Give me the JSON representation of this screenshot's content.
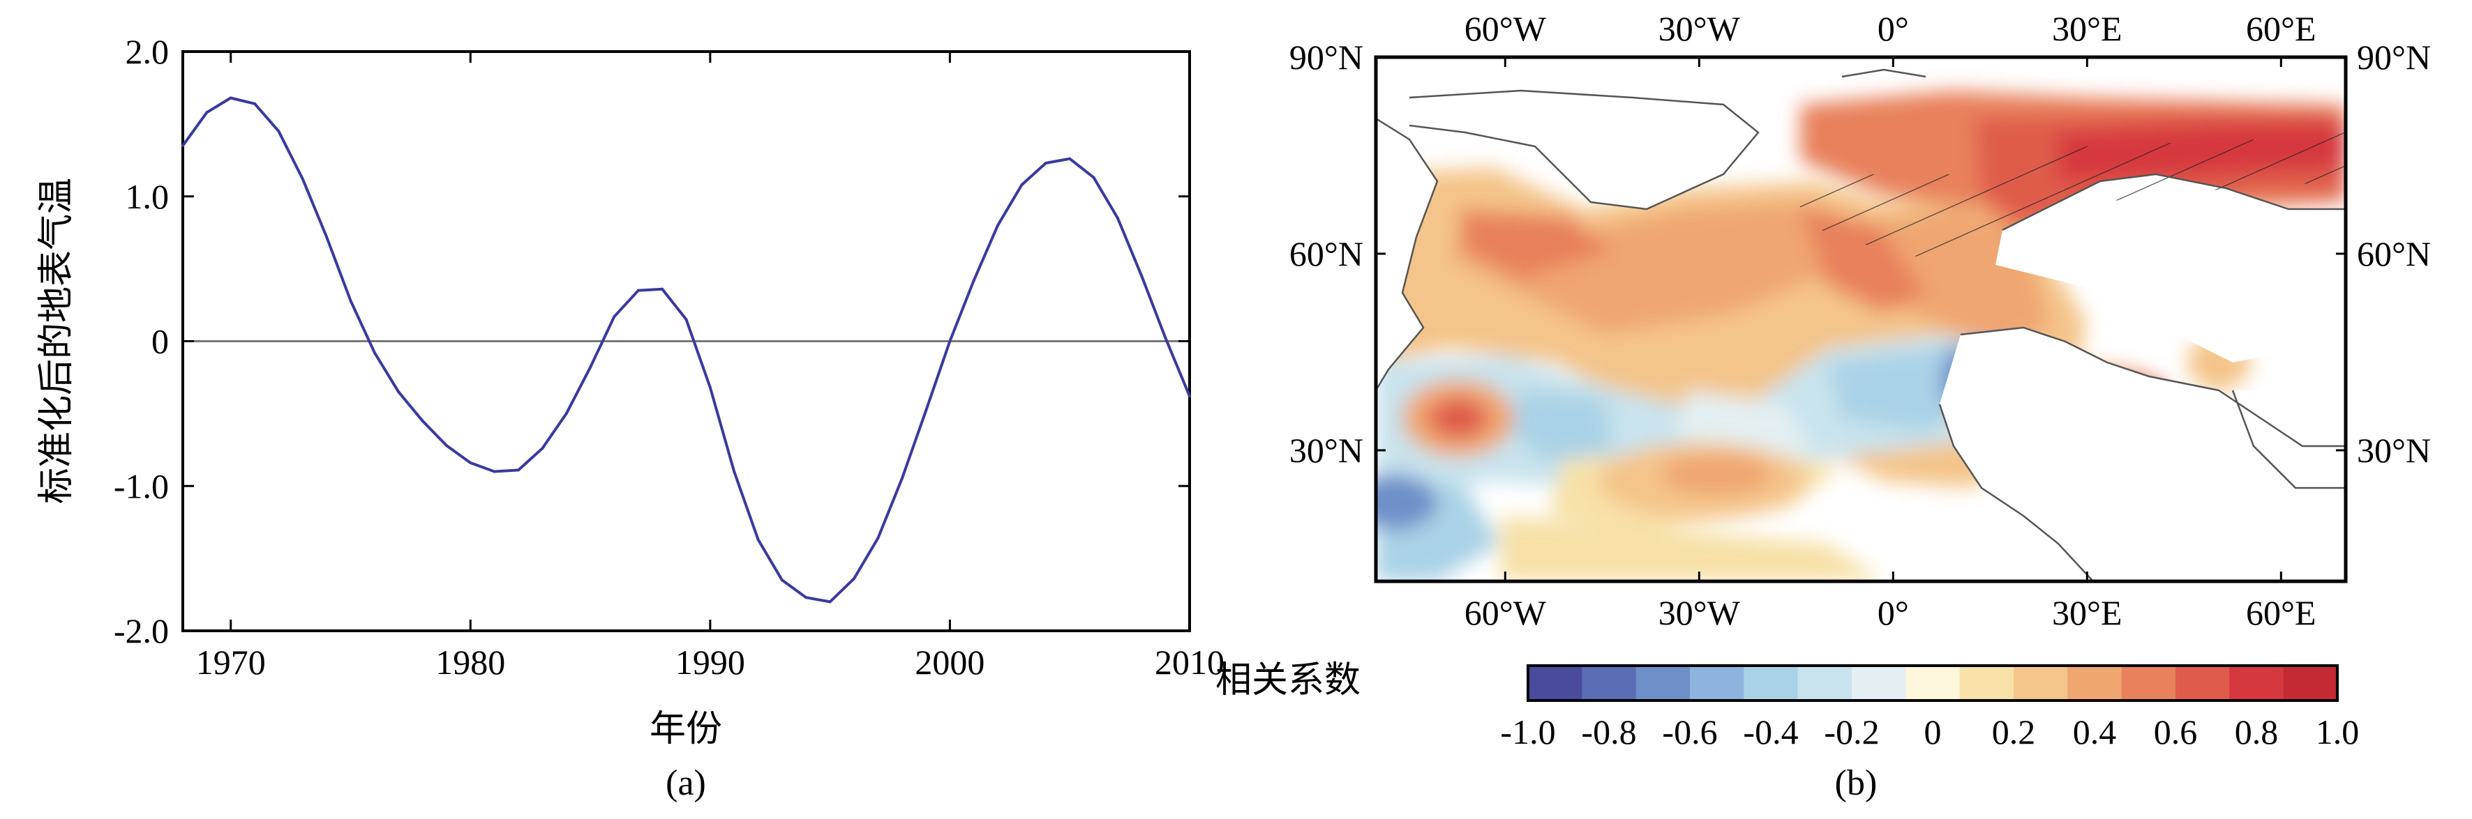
{
  "chart_data": [
    {
      "type": "line",
      "panel_label": "(a)",
      "xlabel": "年份",
      "ylabel": "标准化后的地表气温",
      "xlim": [
        1968,
        2010
      ],
      "ylim": [
        -2.0,
        2.0
      ],
      "xticks": [
        1970,
        1980,
        1990,
        2000,
        2010
      ],
      "xtick_labels": [
        "1970",
        "1980",
        "1990",
        "2000",
        "2010"
      ],
      "yticks": [
        2.0,
        1.0,
        0,
        -1.0,
        -2.0
      ],
      "ytick_labels": [
        "2.0",
        "1.0",
        "0",
        "-1.0",
        "-2.0"
      ],
      "zero_line": true,
      "grid": false,
      "series_color": "#3a3a9e",
      "x": [
        1968,
        1969,
        1970,
        1971,
        1972,
        1973,
        1974,
        1975,
        1976,
        1977,
        1978,
        1979,
        1980,
        1981,
        1982,
        1983,
        1984,
        1985,
        1986,
        1987,
        1988,
        1989,
        1990,
        1991,
        1992,
        1993,
        1994,
        1995,
        1996,
        1997,
        1998,
        1999,
        2000,
        2001,
        2002,
        2003,
        2004,
        2005,
        2006,
        2007,
        2008,
        2009,
        2010
      ],
      "values": [
        1.35,
        1.58,
        1.68,
        1.64,
        1.45,
        1.12,
        0.72,
        0.28,
        -0.08,
        -0.35,
        -0.55,
        -0.72,
        -0.84,
        -0.9,
        -0.89,
        -0.74,
        -0.5,
        -0.18,
        0.17,
        0.35,
        0.36,
        0.15,
        -0.32,
        -0.9,
        -1.37,
        -1.65,
        -1.77,
        -1.8,
        -1.64,
        -1.36,
        -0.95,
        -0.48,
        0.0,
        0.42,
        0.8,
        1.08,
        1.23,
        1.26,
        1.13,
        0.85,
        0.45,
        0.02,
        -0.38
      ]
    },
    {
      "type": "heatmap",
      "panel_label": "(b)",
      "top_ticks": [
        "60°W",
        "30°W",
        "0°",
        "30°E",
        "60°E"
      ],
      "bottom_ticks": [
        "60°W",
        "30°W",
        "0°",
        "30°E",
        "60°E"
      ],
      "left_ticks": [
        "90°N",
        "60°N",
        "30°N"
      ],
      "right_ticks": [
        "90°N",
        "60°N",
        "30°N"
      ],
      "lon_range": [
        -80,
        70
      ],
      "lat_range": [
        10,
        90
      ],
      "colorbar_label": "相关系数",
      "colorbar_range": [
        -1.0,
        1.0
      ],
      "colorbar_tick_labels": [
        "-1.0",
        "-0.8",
        "-0.6",
        "-0.4",
        "-0.2",
        "0",
        "0.2",
        "0.4",
        "0.6",
        "0.8",
        "1.0"
      ],
      "colorbar_colors": [
        "#4a4b9c",
        "#5b6db5",
        "#6e8fc9",
        "#8cb4dc",
        "#aad2e6",
        "#c8e3ed",
        "#e3eff2",
        "#fbf6dc",
        "#f7e1a8",
        "#f4c58a",
        "#f0a66f",
        "#e8815c",
        "#df5b4b",
        "#d6383e",
        "#c42a34"
      ]
    }
  ]
}
